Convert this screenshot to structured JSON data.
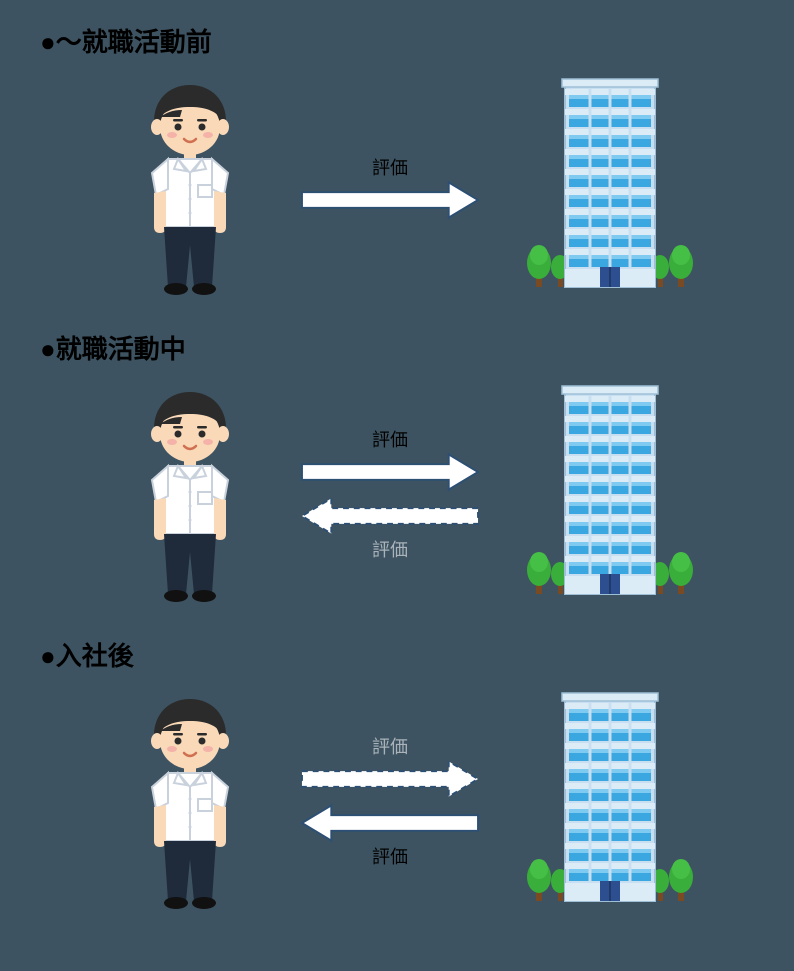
{
  "background_color": "#3d5361",
  "arrow": {
    "fill": "#ffffff",
    "stroke": "#2d4f74",
    "stroke_width": 2,
    "shaft_width": 16,
    "length": 180,
    "head_len": 30,
    "head_half": 18
  },
  "arrow_dashed": {
    "dash": "6 5"
  },
  "label_color": "#000000",
  "label_color_faded": "#aab3b9",
  "label_fontsize": 18,
  "heading_fontsize": 26,
  "bullet": "●",
  "sections": [
    {
      "id": "before",
      "heading": "～就職活動前",
      "arrows": [
        {
          "dir": "right",
          "style": "solid",
          "label": "評価",
          "label_pos": "above",
          "label_faded": false
        }
      ]
    },
    {
      "id": "during",
      "heading": "就職活動中",
      "arrows": [
        {
          "dir": "right",
          "style": "solid",
          "label": "評価",
          "label_pos": "above",
          "label_faded": false
        },
        {
          "dir": "left",
          "style": "dashed",
          "label": "評価",
          "label_pos": "below",
          "label_faded": true
        }
      ]
    },
    {
      "id": "after",
      "heading": "入社後",
      "arrows": [
        {
          "dir": "right",
          "style": "dashed",
          "label": "評価",
          "label_pos": "above",
          "label_faded": true
        },
        {
          "dir": "left",
          "style": "solid",
          "label": "評価",
          "label_pos": "below",
          "label_faded": false
        }
      ]
    }
  ],
  "person": {
    "skin": "#f9d9b8",
    "hair": "#2b2b2b",
    "shirt": "#ffffff",
    "shirt_line": "#c9d2dc",
    "pants": "#1f2a3a",
    "shoes": "#111111",
    "blush": "#f2a1a1",
    "mouth": "#d07050"
  },
  "building": {
    "wall": "#c7dff0",
    "wall_edge": "#9fbfd6",
    "window": "#3aa7e0",
    "window_hl": "#7fcaf0",
    "band": "#dcecf6",
    "door": "#2d4f8f",
    "tree_foliage": "#3aae3a",
    "tree_trunk": "#7a4a22"
  }
}
